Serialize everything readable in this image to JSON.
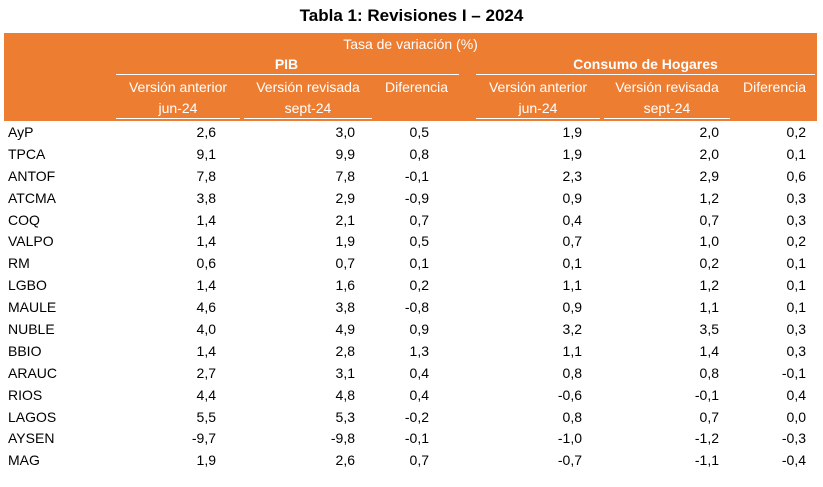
{
  "title": "Tabla 1: Revisiones I – 2024",
  "table": {
    "super_header": "Tasa de variación (%)",
    "groups": [
      "PIB",
      "Consumo de Hogares"
    ],
    "columns": [
      {
        "line1": "Versión anterior",
        "line2": "jun-24"
      },
      {
        "line1": "Versión revisada",
        "line2": "sept-24"
      },
      {
        "line1": "Diferencia",
        "line2": ""
      },
      {
        "line1": "Versión anterior",
        "line2": "jun-24"
      },
      {
        "line1": "Versión revisada",
        "line2": "sept-24"
      },
      {
        "line1": "Diferencia",
        "line2": ""
      }
    ],
    "rows": [
      {
        "region": "AyP",
        "values": [
          "2,6",
          "3,0",
          "0,5",
          "1,9",
          "2,0",
          "0,2"
        ]
      },
      {
        "region": "TPCA",
        "values": [
          "9,1",
          "9,9",
          "0,8",
          "1,9",
          "2,0",
          "0,1"
        ]
      },
      {
        "region": "ANTOF",
        "values": [
          "7,8",
          "7,8",
          "-0,1",
          "2,3",
          "2,9",
          "0,6"
        ]
      },
      {
        "region": "ATCMA",
        "values": [
          "3,8",
          "2,9",
          "-0,9",
          "0,9",
          "1,2",
          "0,3"
        ]
      },
      {
        "region": "COQ",
        "values": [
          "1,4",
          "2,1",
          "0,7",
          "0,4",
          "0,7",
          "0,3"
        ]
      },
      {
        "region": "VALPO",
        "values": [
          "1,4",
          "1,9",
          "0,5",
          "0,7",
          "1,0",
          "0,2"
        ]
      },
      {
        "region": "RM",
        "values": [
          "0,6",
          "0,7",
          "0,1",
          "0,1",
          "0,2",
          "0,1"
        ]
      },
      {
        "region": "LGBO",
        "values": [
          "1,4",
          "1,6",
          "0,2",
          "1,1",
          "1,2",
          "0,1"
        ]
      },
      {
        "region": "MAULE",
        "values": [
          "4,6",
          "3,8",
          "-0,8",
          "0,9",
          "1,1",
          "0,1"
        ]
      },
      {
        "region": "NUBLE",
        "values": [
          "4,0",
          "4,9",
          "0,9",
          "3,2",
          "3,5",
          "0,3"
        ]
      },
      {
        "region": "BBIO",
        "values": [
          "1,4",
          "2,8",
          "1,3",
          "1,1",
          "1,4",
          "0,3"
        ]
      },
      {
        "region": "ARAUC",
        "values": [
          "2,7",
          "3,1",
          "0,4",
          "0,8",
          "0,8",
          "-0,1"
        ]
      },
      {
        "region": "RIOS",
        "values": [
          "4,4",
          "4,8",
          "0,4",
          "-0,6",
          "-0,1",
          "0,4"
        ]
      },
      {
        "region": "LAGOS",
        "values": [
          "5,5",
          "5,3",
          "-0,2",
          "0,8",
          "0,7",
          "0,0"
        ]
      },
      {
        "region": "AYSEN",
        "values": [
          "-9,7",
          "-9,8",
          "-0,1",
          "-1,0",
          "-1,2",
          "-0,3"
        ]
      },
      {
        "region": "MAG",
        "values": [
          "1,9",
          "2,6",
          "0,7",
          "-0,7",
          "-1,1",
          "-0,4"
        ]
      }
    ]
  },
  "colors": {
    "header_bg": "#ed7d31",
    "header_text": "#ffffff"
  }
}
